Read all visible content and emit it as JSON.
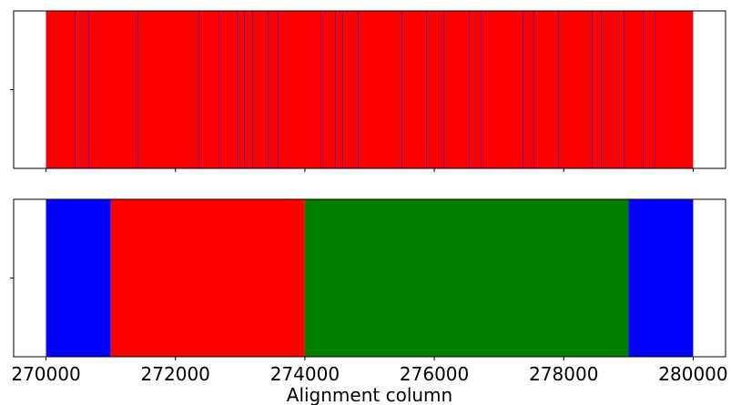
{
  "chart_data": [
    {
      "type": "span",
      "spans": [
        {
          "start": 270000,
          "end": 280000,
          "color": "#ff0000"
        }
      ],
      "vlines": [
        270450,
        270661,
        271420,
        272363,
        272672,
        272954,
        273066,
        273193,
        273432,
        273586,
        274248,
        274473,
        274585,
        274824,
        275499,
        275879,
        276146,
        276540,
        276723,
        277370,
        277539,
        277918,
        278439,
        278579,
        278931,
        279226,
        279409
      ],
      "vline_color": "#0000ff",
      "xlim": [
        269500,
        280500
      ],
      "xticks": [
        270000,
        272000,
        274000,
        276000,
        278000,
        280000
      ]
    },
    {
      "type": "span",
      "spans": [
        {
          "start": 270000,
          "end": 271000,
          "color": "#0000ff"
        },
        {
          "start": 271000,
          "end": 274000,
          "color": "#ff0000"
        },
        {
          "start": 274000,
          "end": 279000,
          "color": "#008000"
        },
        {
          "start": 279000,
          "end": 280000,
          "color": "#0000ff"
        }
      ],
      "xlim": [
        269500,
        280500
      ],
      "xticks": [
        270000,
        272000,
        274000,
        276000,
        278000,
        280000
      ],
      "xlabel": "Alignment column"
    }
  ]
}
